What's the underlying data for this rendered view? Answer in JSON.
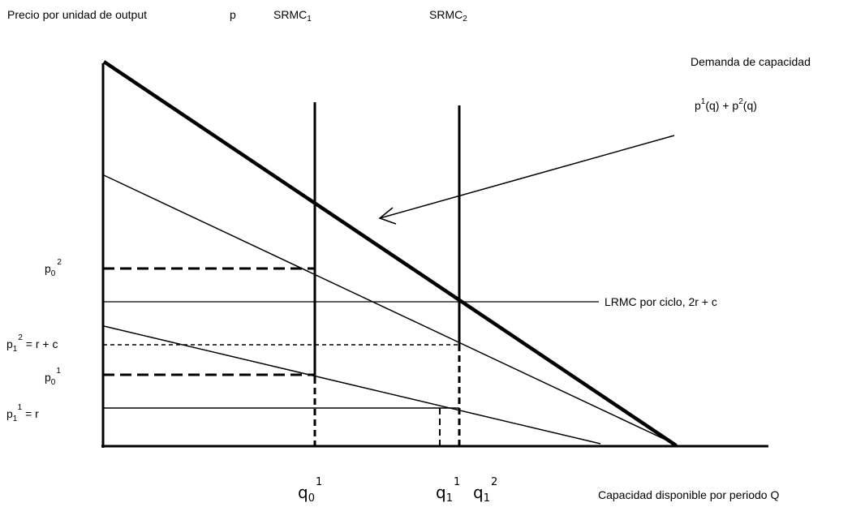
{
  "labels": {
    "y_axis_title": "Precio por unidad de output",
    "y_axis_symbol": "p",
    "srmc1": "SRMC",
    "srmc1_sub": "1",
    "srmc2": "SRMC",
    "srmc2_sub": "2",
    "demand_title": "Demanda de capacidad",
    "demand_formula_p": "p",
    "demand_formula_sup1": "1",
    "demand_formula_mid": "(q) + p",
    "demand_formula_sup2": "2",
    "demand_formula_end": "(q)",
    "lrmc": "LRMC por ciclo, 2r + c",
    "x_axis_title": "Capacidad disponible por periodo Q",
    "p0_2": {
      "base": "p",
      "sub": "0",
      "sup": "2",
      "suffix": ""
    },
    "p1_2": {
      "base": "p",
      "sub": "1",
      "sup": "2",
      "suffix": " = r + c"
    },
    "p0_1": {
      "base": "p",
      "sub": "0",
      "sup": "1",
      "suffix": ""
    },
    "p1_1": {
      "base": "p",
      "sub": "1",
      "sup": "1",
      "suffix": " = r"
    },
    "q0_1": {
      "base": "q",
      "sub": "0",
      "sup": "1"
    },
    "q1_1": {
      "base": "q",
      "sub": "1",
      "sup": "1"
    },
    "q1_2": {
      "base": "q",
      "sub": "1",
      "sup": "2"
    }
  }
}
